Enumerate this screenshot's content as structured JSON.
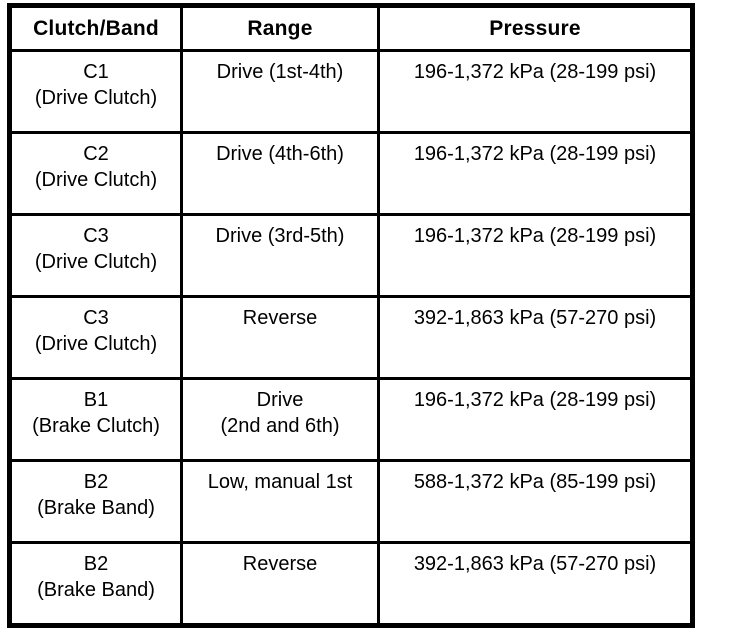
{
  "page": {
    "background": "#ffffff",
    "border_color": "#000000",
    "text_color": "#000000"
  },
  "table": {
    "headers": [
      "Clutch/Band",
      "Range",
      "Pressure"
    ],
    "rows": [
      {
        "clutch_line1": "C1",
        "clutch_line2": "(Drive Clutch)",
        "range_line1": "Drive (1st-4th)",
        "range_line2": "",
        "pressure": "196-1,372 kPa (28-199 psi)"
      },
      {
        "clutch_line1": "C2",
        "clutch_line2": "(Drive Clutch)",
        "range_line1": "Drive (4th-6th)",
        "range_line2": "",
        "pressure": "196-1,372 kPa (28-199 psi)"
      },
      {
        "clutch_line1": "C3",
        "clutch_line2": "(Drive Clutch)",
        "range_line1": "Drive (3rd-5th)",
        "range_line2": "",
        "pressure": "196-1,372 kPa (28-199 psi)"
      },
      {
        "clutch_line1": "C3",
        "clutch_line2": "(Drive Clutch)",
        "range_line1": "Reverse",
        "range_line2": "",
        "pressure": "392-1,863 kPa (57-270 psi)"
      },
      {
        "clutch_line1": "B1",
        "clutch_line2": "(Brake Clutch)",
        "range_line1": "Drive",
        "range_line2": "(2nd and 6th)",
        "pressure": "196-1,372 kPa (28-199 psi)"
      },
      {
        "clutch_line1": "B2",
        "clutch_line2": "(Brake Band)",
        "range_line1": "Low, manual 1st",
        "range_line2": "",
        "pressure": "588-1,372 kPa (85-199 psi)"
      },
      {
        "clutch_line1": "B2",
        "clutch_line2": "(Brake Band)",
        "range_line1": "Reverse",
        "range_line2": "",
        "pressure": "392-1,863 kPa (57-270 psi)"
      }
    ]
  }
}
